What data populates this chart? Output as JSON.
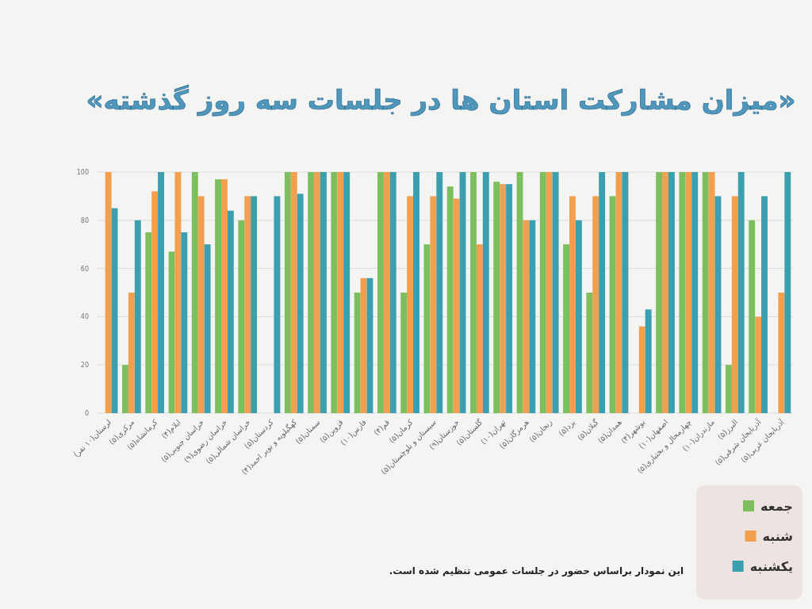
{
  "chart_data": {
    "type": "bar",
    "title": "«میزان مشارکت استان ها در جلسات سه روز گذشته»",
    "categories": [
      "لرستان(۱۰ نفر)",
      "مرکزی(۵)",
      "کرمانشاه(۵)",
      "ایلام(۴)",
      "خراسان جنوبی(۵)",
      "خراسان رضوی(۹)",
      "خراسان شمالی(۵)",
      "کردستان(۵)",
      "کهگیلویه و بویر احمد(۴)",
      "سمنان(۵)",
      "قزوین(۵)",
      "فارس(۱۰)",
      "قم(۴)",
      "کرمان(۵)",
      "سیستان و بلوچستان(۵)",
      "خوزستان(۹)",
      "گلستان(۵)",
      "تهران(۱۰)",
      "هرمزگان(۵)",
      "زنجان(۵)",
      "یزد(۵)",
      "گیلان(۵)",
      "همدان(۵)",
      "بوشهر(۴)",
      "اصفهان(۱۰)",
      "چهارمحال و بختیاری(۵)",
      "مازندران(۱۰)",
      "البرز(۵)",
      "آذربایجان شرقی(۵)",
      "آذربایجان غربی(۵)"
    ],
    "series": [
      {
        "name": "جمعه",
        "color": "#7dbf5e",
        "values": [
          null,
          20,
          75,
          67,
          100,
          97,
          80,
          null,
          100,
          100,
          100,
          50,
          100,
          50,
          70,
          94,
          100,
          96,
          100,
          100,
          70,
          50,
          90,
          null,
          100,
          100,
          100,
          20,
          80,
          null
        ]
      },
      {
        "name": "شنبه",
        "color": "#f2a04e",
        "values": [
          100,
          50,
          92,
          100,
          90,
          97,
          90,
          null,
          100,
          100,
          100,
          56,
          100,
          90,
          90,
          89,
          70,
          95,
          80,
          100,
          90,
          90,
          100,
          36,
          100,
          100,
          100,
          90,
          40,
          50
        ]
      },
      {
        "name": "یکشنبه",
        "color": "#3b9fb0",
        "values": [
          85,
          80,
          100,
          75,
          70,
          84,
          90,
          90,
          91,
          100,
          100,
          56,
          100,
          100,
          100,
          100,
          100,
          95,
          80,
          100,
          80,
          100,
          100,
          43,
          100,
          100,
          90,
          100,
          90,
          100
        ]
      }
    ],
    "ylim": [
      0,
      100
    ],
    "yticks": [
      0,
      20,
      40,
      60,
      80,
      100
    ],
    "grid": "y",
    "legend": "bottom right",
    "annotations": [
      "این نمودار براساس حضور در جلسات عمومی تنظیم شده است."
    ]
  }
}
